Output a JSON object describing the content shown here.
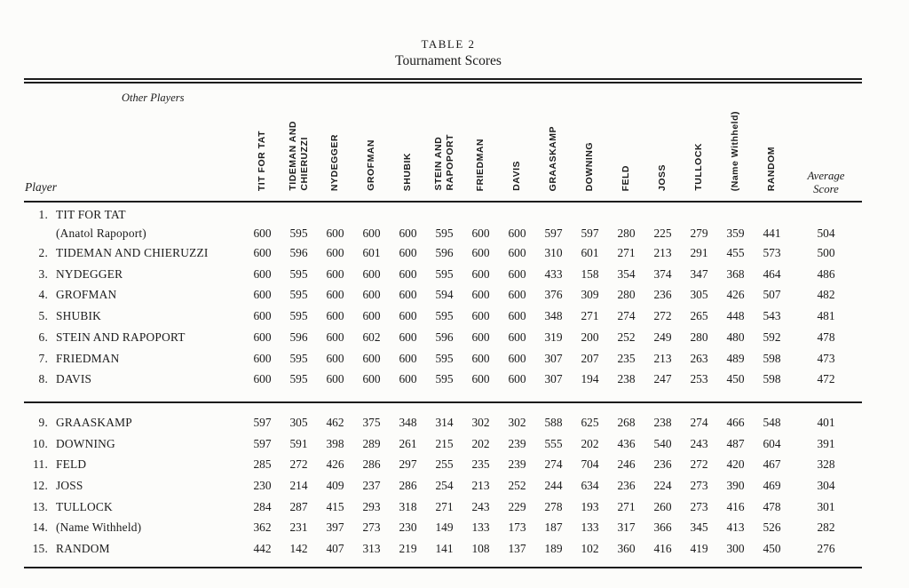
{
  "title": {
    "table_label": "TABLE 2",
    "table_caption": "Tournament Scores"
  },
  "header": {
    "other_players_label": "Other Players",
    "player_label": "Player",
    "columns": [
      "TIT FOR TAT",
      "TIDEMAN AND\nCHIERUZZI",
      "NYDEGGER",
      "GROFMAN",
      "SHUBIK",
      "STEIN AND\nRAPOPORT",
      "FRIEDMAN",
      "DAVIS",
      "GRAASKAMP",
      "DOWNING",
      "FELD",
      "JOSS",
      "TULLOCK",
      "(Name Withheld)",
      "RANDOM"
    ],
    "average_label": "Average\nScore"
  },
  "rows": [
    {
      "num": "1.",
      "name": "TIT FOR TAT",
      "name2": "(Anatol Rapoport)",
      "group": 1,
      "scores": [
        600,
        595,
        600,
        600,
        600,
        595,
        600,
        600,
        597,
        597,
        280,
        225,
        279,
        359,
        441
      ],
      "average": 504
    },
    {
      "num": "2.",
      "name": "TIDEMAN AND CHIERUZZI",
      "group": 1,
      "scores": [
        600,
        596,
        600,
        601,
        600,
        596,
        600,
        600,
        310,
        601,
        271,
        213,
        291,
        455,
        573
      ],
      "average": 500
    },
    {
      "num": "3.",
      "name": "NYDEGGER",
      "group": 1,
      "scores": [
        600,
        595,
        600,
        600,
        600,
        595,
        600,
        600,
        433,
        158,
        354,
        374,
        347,
        368,
        464
      ],
      "average": 486
    },
    {
      "num": "4.",
      "name": "GROFMAN",
      "group": 1,
      "scores": [
        600,
        595,
        600,
        600,
        600,
        594,
        600,
        600,
        376,
        309,
        280,
        236,
        305,
        426,
        507
      ],
      "average": 482
    },
    {
      "num": "5.",
      "name": "SHUBIK",
      "group": 1,
      "scores": [
        600,
        595,
        600,
        600,
        600,
        595,
        600,
        600,
        348,
        271,
        274,
        272,
        265,
        448,
        543
      ],
      "average": 481
    },
    {
      "num": "6.",
      "name": "STEIN AND RAPOPORT",
      "group": 1,
      "scores": [
        600,
        596,
        600,
        602,
        600,
        596,
        600,
        600,
        319,
        200,
        252,
        249,
        280,
        480,
        592
      ],
      "average": 478
    },
    {
      "num": "7.",
      "name": "FRIEDMAN",
      "group": 1,
      "scores": [
        600,
        595,
        600,
        600,
        600,
        595,
        600,
        600,
        307,
        207,
        235,
        213,
        263,
        489,
        598
      ],
      "average": 473
    },
    {
      "num": "8.",
      "name": "DAVIS",
      "group": 1,
      "scores": [
        600,
        595,
        600,
        600,
        600,
        595,
        600,
        600,
        307,
        194,
        238,
        247,
        253,
        450,
        598
      ],
      "average": 472
    },
    {
      "num": "9.",
      "name": "GRAASKAMP",
      "group": 2,
      "scores": [
        597,
        305,
        462,
        375,
        348,
        314,
        302,
        302,
        588,
        625,
        268,
        238,
        274,
        466,
        548
      ],
      "average": 401
    },
    {
      "num": "10.",
      "name": "DOWNING",
      "group": 2,
      "scores": [
        597,
        591,
        398,
        289,
        261,
        215,
        202,
        239,
        555,
        202,
        436,
        540,
        243,
        487,
        604
      ],
      "average": 391
    },
    {
      "num": "11.",
      "name": "FELD",
      "group": 2,
      "scores": [
        285,
        272,
        426,
        286,
        297,
        255,
        235,
        239,
        274,
        704,
        246,
        236,
        272,
        420,
        467
      ],
      "average": 328
    },
    {
      "num": "12.",
      "name": "JOSS",
      "group": 2,
      "scores": [
        230,
        214,
        409,
        237,
        286,
        254,
        213,
        252,
        244,
        634,
        236,
        224,
        273,
        390,
        469
      ],
      "average": 304
    },
    {
      "num": "13.",
      "name": "TULLOCK",
      "group": 2,
      "scores": [
        284,
        287,
        415,
        293,
        318,
        271,
        243,
        229,
        278,
        193,
        271,
        260,
        273,
        416,
        478
      ],
      "average": 301
    },
    {
      "num": "14.",
      "name": "(Name Withheld)",
      "group": 2,
      "scores": [
        362,
        231,
        397,
        273,
        230,
        149,
        133,
        173,
        187,
        133,
        317,
        366,
        345,
        413,
        526
      ],
      "average": 282
    },
    {
      "num": "15.",
      "name": "RANDOM",
      "group": 2,
      "scores": [
        442,
        142,
        407,
        313,
        219,
        141,
        108,
        137,
        189,
        102,
        360,
        416,
        419,
        300,
        450
      ],
      "average": 276
    }
  ]
}
